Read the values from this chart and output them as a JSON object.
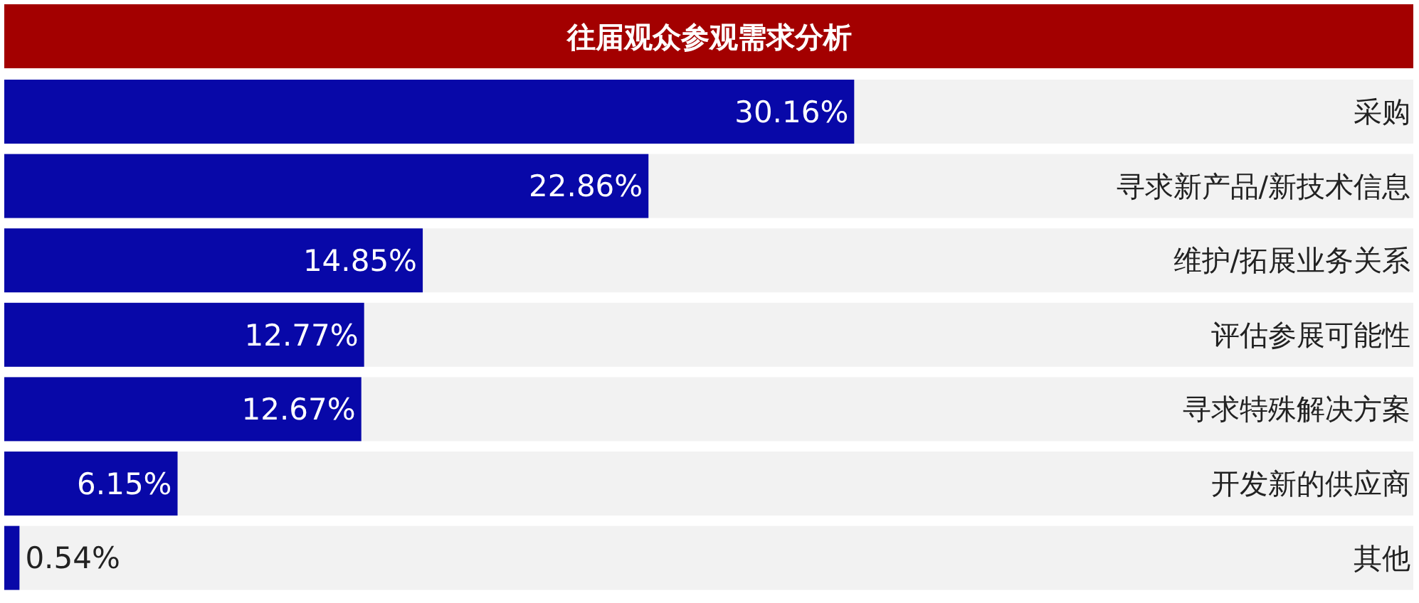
{
  "chart_data": {
    "type": "bar",
    "orientation": "horizontal",
    "title": "往届观众参观需求分析",
    "categories": [
      "采购",
      "寻求新产品/新技术信息",
      "维护/拓展业务关系",
      "评估参展可能性",
      "寻求特殊解决方案",
      "开发新的供应商",
      "其他"
    ],
    "values": [
      30.16,
      22.86,
      14.85,
      12.77,
      12.67,
      6.15,
      0.54
    ],
    "value_labels": [
      "30.16%",
      "22.86%",
      "14.85%",
      "12.77%",
      "12.67%",
      "6.15%",
      "0.54%"
    ],
    "color": "#0808a8",
    "xlim": [
      0,
      50
    ]
  }
}
